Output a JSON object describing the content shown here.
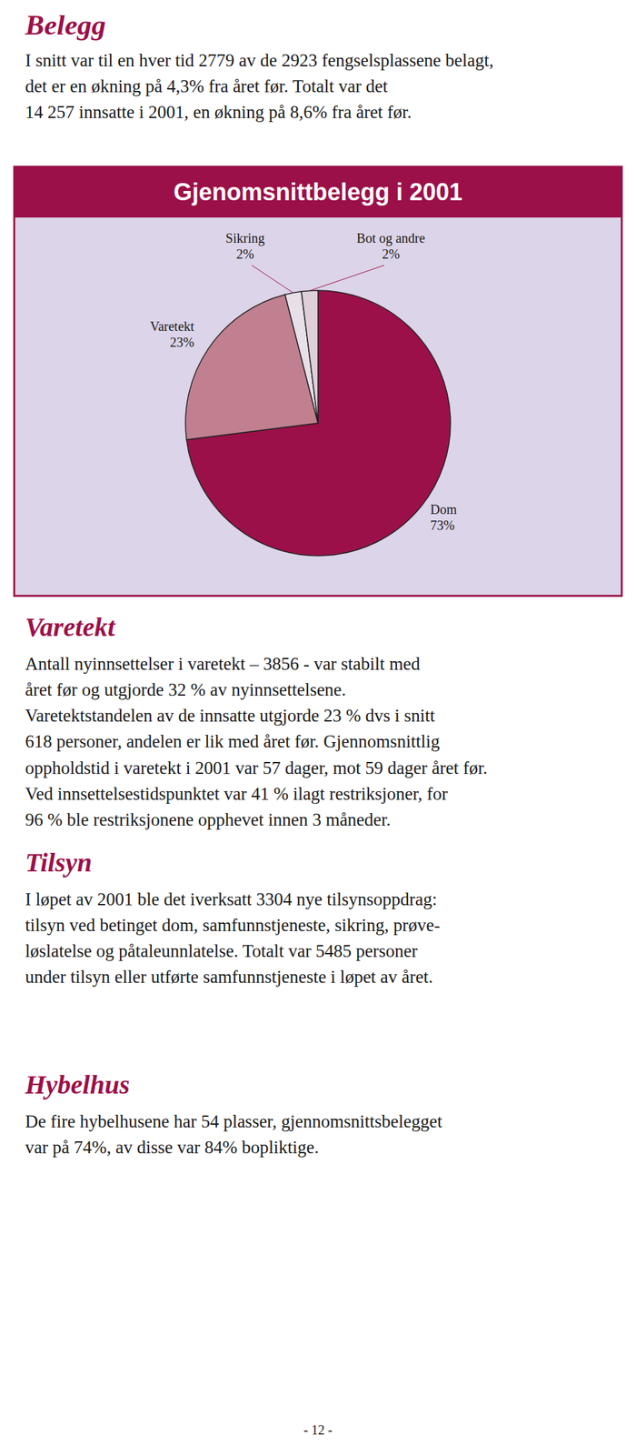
{
  "chart_data": {
    "type": "pie",
    "title": "Gjenomsnittbelegg i 2001",
    "categories": [
      "Dom",
      "Varetekt",
      "Sikring",
      "Bot og andre"
    ],
    "values": [
      73,
      23,
      2,
      2
    ],
    "value_labels": [
      "73%",
      "23%",
      "2%",
      "2%"
    ],
    "colors": [
      "#9b1048",
      "#c08090",
      "#e8e0e8",
      "#ddd0d8"
    ],
    "data_labels": true
  },
  "page": {
    "heading": "Belegg",
    "intro_lines": [
      "I snitt var til en hver tid 2779 av de 2923 fengselsplassene belagt,",
      "det er en økning på 4,3% fra året før. Totalt var det",
      "14 257 innsatte i 2001, en økning på 8,6% fra året før."
    ],
    "sections": [
      {
        "heading": "Varetekt",
        "lines": [
          "Antall nyinnsettelser i varetekt – 3856 - var stabilt med",
          "året før og utgjorde 32 % av nyinnsettelsene.",
          "Varetektstandelen av de innsatte utgjorde 23 % dvs i snitt",
          "618 personer, andelen er lik med året før. Gjennomsnittlig",
          "oppholdstid i varetekt i 2001 var 57 dager, mot 59 dager året før.",
          "Ved innsettelsestidspunktet var 41 % ilagt restriksjoner, for",
          "96 % ble restriksjonene opphevet innen 3 måneder."
        ]
      },
      {
        "heading": "Tilsyn",
        "lines": [
          "I løpet av 2001 ble det iverksatt 3304 nye tilsynsoppdrag:",
          "tilsyn ved betinget dom, samfunnstjeneste, sikring, prøve-",
          "løslatelse og påtaleunnlatelse. Totalt var 5485 personer",
          "under tilsyn eller utførte samfunnstjeneste i løpet av året."
        ]
      },
      {
        "heading": "Hybelhus",
        "lines": [
          "De fire hybelhusene har 54 plasser, gjennomsnittsbelegget",
          "var på 74%, av disse var 84% bopliktige."
        ]
      }
    ],
    "footer": "- 12 -"
  }
}
